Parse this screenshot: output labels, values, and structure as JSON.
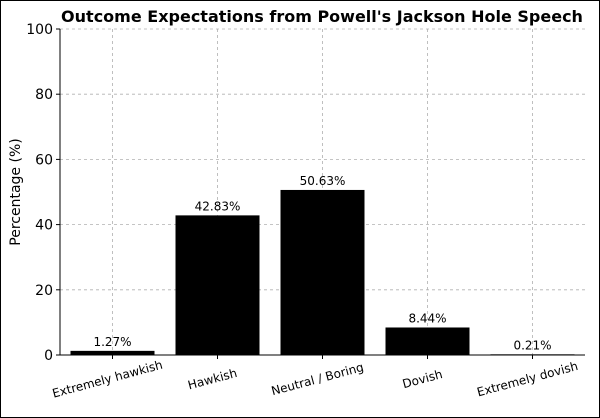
{
  "chart_data": {
    "type": "bar",
    "title": "Outcome Expectations from Powell's Jackson Hole Speech",
    "xlabel": "",
    "ylabel": "Percentage (%)",
    "categories": [
      "Extremely hawkish",
      "Hawkish",
      "Neutral / Boring",
      "Dovish",
      "Extremely dovish"
    ],
    "values": [
      1.27,
      42.83,
      50.63,
      8.44,
      0.21
    ],
    "data_labels": [
      "1.27%",
      "42.83%",
      "50.63%",
      "8.44%",
      "0.21%"
    ],
    "ylim": [
      0,
      100
    ],
    "yticks": [
      0,
      20,
      40,
      60,
      80,
      100
    ],
    "grid": true,
    "bar_color": "#000000"
  }
}
